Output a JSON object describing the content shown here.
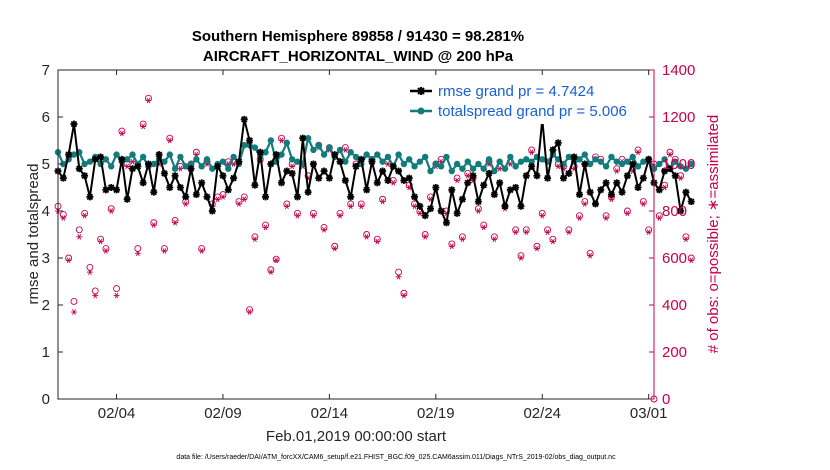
{
  "chart_data": {
    "type": "line",
    "title_line1": "Southern Hemisphere 89858 / 91430 = 98.281%",
    "title_line2": "AIRCRAFT_HORIZONTAL_WIND @ 200 hPa",
    "xlabel": "Feb.01,2019 00:00:00 start",
    "ylabel_left": "rmse and totalspread",
    "ylabel_right": "# of obs: o=possible; ∗=assimilated",
    "ylim_left": [
      0,
      7
    ],
    "ylim_right": [
      0,
      1400
    ],
    "xlim": [
      1,
      29
    ],
    "x_ticks": [
      {
        "value": 3.75,
        "label": "02/04"
      },
      {
        "value": 8.75,
        "label": "02/09"
      },
      {
        "value": 13.75,
        "label": "02/14"
      },
      {
        "value": 18.75,
        "label": "02/19"
      },
      {
        "value": 23.75,
        "label": "02/24"
      },
      {
        "value": 28.75,
        "label": "03/01"
      }
    ],
    "y_ticks_left": [
      "0",
      "1",
      "2",
      "3",
      "4",
      "5",
      "6",
      "7"
    ],
    "y_ticks_right": [
      "0",
      "200",
      "400",
      "600",
      "800",
      "1000",
      "1200",
      "1400"
    ],
    "x_start": 1.0,
    "x_step": 0.25,
    "series": [
      {
        "name": "rmse",
        "legend": "rmse grand pr = 4.7424",
        "color": "#000000",
        "axis": "left",
        "values": [
          4.85,
          4.7,
          5.2,
          5.85,
          4.9,
          4.75,
          4.3,
          5.1,
          5.15,
          4.45,
          4.5,
          4.45,
          5.1,
          4.25,
          4.9,
          4.95,
          4.6,
          5.0,
          4.4,
          5.2,
          4.8,
          4.5,
          4.75,
          4.5,
          4.3,
          4.9,
          4.35,
          4.6,
          4.3,
          4.0,
          4.95,
          4.75,
          4.45,
          4.7,
          5.05,
          5.95,
          5.5,
          4.55,
          5.25,
          4.3,
          5.0,
          5.2,
          4.6,
          4.85,
          4.8,
          4.3,
          5.55,
          4.4,
          5.0,
          4.7,
          4.85,
          4.7,
          5.2,
          5.05,
          4.65,
          4.3,
          4.95,
          5.1,
          4.45,
          5.05,
          4.6,
          4.85,
          4.65,
          4.95,
          4.85,
          4.65,
          4.7,
          4.3,
          4.1,
          3.9,
          4.05,
          4.5,
          4.0,
          3.75,
          4.45,
          3.95,
          4.25,
          4.6,
          4.75,
          4.2,
          4.55,
          4.8,
          4.35,
          4.6,
          4.1,
          4.45,
          4.5,
          4.1,
          4.75,
          4.95,
          4.75,
          5.95,
          4.7,
          5.3,
          5.45,
          4.7,
          4.8,
          5.15,
          4.35,
          5.0,
          4.4,
          4.15,
          4.45,
          4.6,
          4.35,
          4.6,
          4.4,
          4.75,
          5.0,
          4.5,
          4.7,
          5.1,
          4.6,
          4.45,
          4.85,
          4.9,
          4.75,
          4.0,
          4.4,
          4.2
        ]
      },
      {
        "name": "totalspread",
        "legend": "totalspread grand pr = 5.006",
        "color": "#127c7c",
        "axis": "left",
        "values": [
          5.25,
          5.0,
          5.1,
          5.2,
          5.25,
          5.0,
          5.05,
          5.15,
          5.0,
          5.1,
          4.95,
          5.2,
          5.05,
          5.1,
          5.2,
          5.0,
          5.15,
          4.95,
          5.0,
          5.1,
          5.05,
          5.2,
          4.9,
          5.15,
          4.95,
          5.0,
          5.1,
          4.95,
          5.1,
          4.9,
          5.0,
          5.05,
          4.9,
          5.15,
          5.0,
          5.4,
          5.4,
          5.35,
          5.15,
          5.25,
          5.5,
          5.05,
          5.2,
          5.45,
          5.1,
          5.05,
          5.0,
          5.55,
          5.3,
          5.4,
          5.2,
          5.35,
          5.15,
          5.3,
          5.05,
          5.25,
          5.15,
          5.0,
          5.2,
          5.1,
          5.2,
          5.05,
          5.15,
          4.95,
          5.2,
          5.0,
          5.1,
          4.95,
          5.05,
          5.15,
          4.85,
          5.0,
          4.95,
          5.15,
          4.85,
          5.0,
          4.9,
          5.05,
          4.9,
          5.0,
          4.9,
          5.1,
          4.85,
          5.05,
          4.9,
          5.15,
          4.95,
          5.05,
          5.1,
          5.05,
          5.15,
          5.1,
          5.05,
          5.2,
          5.1,
          5.0,
          5.15,
          5.05,
          5.1,
          5.2,
          5.0,
          5.1,
          5.05,
          4.95,
          5.15,
          5.05,
          5.0,
          5.05,
          5.15,
          4.95,
          5.05,
          5.1,
          4.9,
          5.0,
          5.1,
          4.9,
          5.05,
          4.95,
          4.9,
          5.0
        ]
      },
      {
        "name": "obs_possible",
        "marker": "o",
        "color": "#c8004a",
        "axis": "right",
        "values": [
          820,
          785,
          600,
          415,
          720,
          790,
          560,
          460,
          680,
          640,
          810,
          470,
          1140,
          1000,
          1020,
          640,
          1170,
          1280,
          750,
          1010,
          640,
          1110,
          760,
          990,
          840,
          1000,
          1050,
          640,
          1010,
          830,
          860,
          870,
          1010,
          1010,
          840,
          860,
          380,
          690,
          1020,
          740,
          550,
          595,
          1110,
          830,
          1000,
          790,
          1000,
          950,
          790,
          1080,
          730,
          1070,
          650,
          790,
          1070,
          830,
          1000,
          830,
          700,
          1020,
          680,
          850,
          1010,
          930,
          540,
          450,
          910,
          830,
          800,
          700,
          860,
          1000,
          1020,
          800,
          660,
          940,
          690,
          960,
          940,
          810,
          740,
          1010,
          690,
          990,
          820,
          1010,
          720,
          610,
          720,
          1060,
          650,
          790,
          720,
          680,
          1000,
          990,
          720,
          990,
          780,
          840,
          620,
          1030,
          1020,
          780,
          860,
          980,
          1020,
          800,
          980,
          1060,
          840,
          720,
          1000,
          780,
          910,
          1050,
          1020,
          950,
          690,
          600
        ]
      },
      {
        "name": "obs_assimilated",
        "marker": "*",
        "color": "#c8004a",
        "axis": "right",
        "values": [
          800,
          770,
          590,
          370,
          690,
          780,
          540,
          440,
          670,
          630,
          800,
          440,
          1130,
          990,
          1010,
          620,
          1160,
          1270,
          740,
          1000,
          630,
          1100,
          750,
          980,
          830,
          990,
          1040,
          630,
          1000,
          820,
          850,
          860,
          1000,
          1000,
          830,
          850,
          370,
          680,
          1010,
          730,
          540,
          590,
          1100,
          820,
          990,
          780,
          990,
          940,
          780,
          1070,
          720,
          1060,
          640,
          780,
          1060,
          820,
          990,
          820,
          690,
          1010,
          670,
          840,
          1000,
          920,
          520,
          440,
          900,
          820,
          790,
          690,
          850,
          990,
          1010,
          790,
          650,
          930,
          680,
          950,
          930,
          800,
          730,
          1000,
          680,
          980,
          810,
          1000,
          710,
          600,
          710,
          1050,
          640,
          780,
          710,
          670,
          990,
          980,
          710,
          980,
          770,
          830,
          610,
          1020,
          1010,
          770,
          850,
          970,
          1010,
          790,
          970,
          1050,
          830,
          710,
          990,
          770,
          900,
          1040,
          1010,
          940,
          680,
          590
        ]
      }
    ]
  },
  "footer": "data file: /Users/raeder/DAI/ATM_forcXX/CAM6_setup/f.e21.FHIST_BGC.f09_025.CAM6assim.011/Diags_NTrS_2019-02/obs_diag_output.nc"
}
